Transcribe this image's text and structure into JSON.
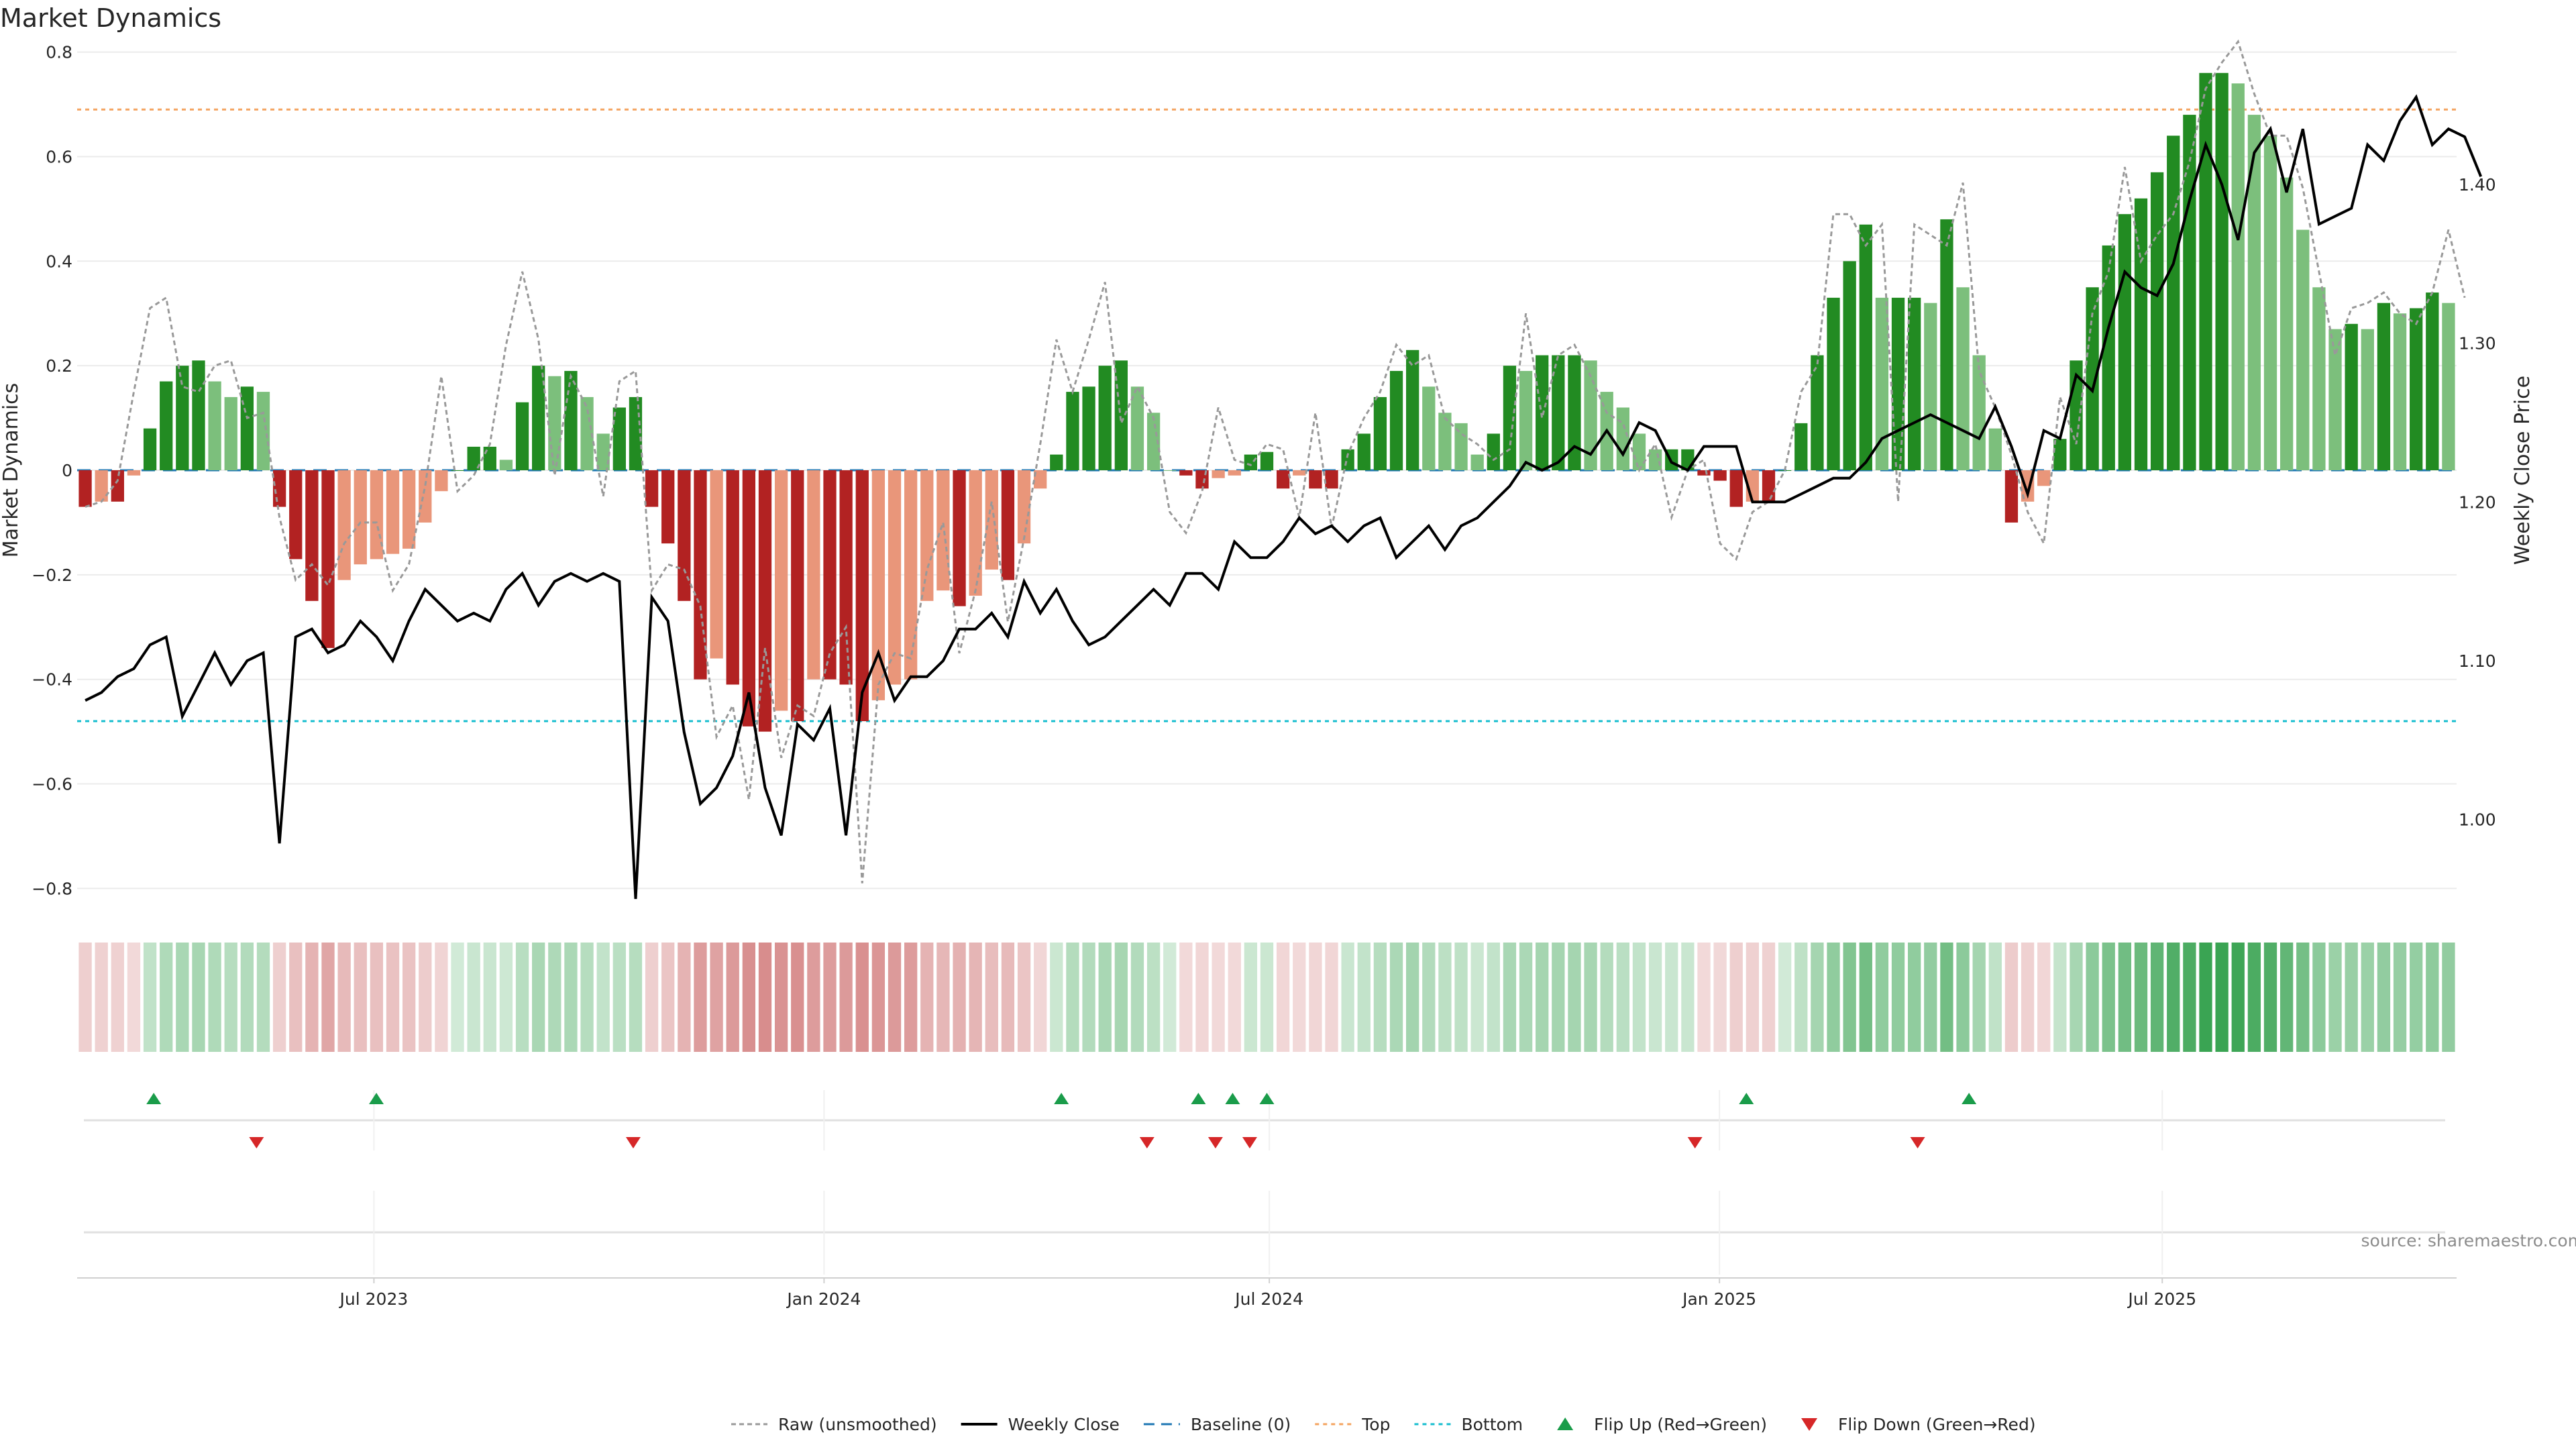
{
  "chart_data": {
    "type": "bar",
    "title": "Market Dynamics",
    "ylabel": "Market Dynamics",
    "y2label": "Weekly Close Price",
    "ylim": [
      -0.82,
      0.82
    ],
    "y2lim": [
      0.95,
      1.49
    ],
    "yticks": [
      0.8,
      0.6,
      0.4,
      0.2,
      0,
      -0.2,
      -0.4,
      -0.6,
      -0.8
    ],
    "ytick_labels": [
      "0.8",
      "0.6",
      "0.4",
      "0.2",
      "0",
      "−0.2",
      "−0.4",
      "−0.6",
      "−0.8"
    ],
    "y2ticks": [
      1.4,
      1.3,
      1.2,
      1.1,
      1.0
    ],
    "y2tick_labels": [
      "1.40",
      "1.30",
      "1.20",
      "1.10",
      "1.00"
    ],
    "x_start": "2023-03-05",
    "x_end": "2025-10-26",
    "xticks": [
      {
        "date": "2023-07-01",
        "label": "Jul 2023"
      },
      {
        "date": "2024-01-01",
        "label": "Jan 2024"
      },
      {
        "date": "2024-07-01",
        "label": "Jul 2024"
      },
      {
        "date": "2025-01-01",
        "label": "Jan 2025"
      },
      {
        "date": "2025-07-01",
        "label": "Jul 2025"
      }
    ],
    "top_line": 0.69,
    "bottom_line": -0.48,
    "baseline": 0,
    "momentum": [
      -0.07,
      -0.06,
      -0.06,
      -0.01,
      0.08,
      0.17,
      0.2,
      0.21,
      0.17,
      0.14,
      0.16,
      0.15,
      -0.07,
      -0.17,
      -0.25,
      -0.34,
      -0.21,
      -0.18,
      -0.17,
      -0.16,
      -0.15,
      -0.1,
      -0.04,
      0.0,
      0.045,
      0.045,
      0.02,
      0.13,
      0.2,
      0.18,
      0.19,
      0.14,
      0.07,
      0.12,
      0.14,
      -0.07,
      -0.14,
      -0.25,
      -0.4,
      -0.36,
      -0.41,
      -0.49,
      -0.5,
      -0.46,
      -0.48,
      -0.4,
      -0.4,
      -0.41,
      -0.48,
      -0.44,
      -0.41,
      -0.4,
      -0.25,
      -0.23,
      -0.26,
      -0.24,
      -0.19,
      -0.21,
      -0.14,
      -0.035,
      0.03,
      0.15,
      0.16,
      0.2,
      0.21,
      0.16,
      0.11,
      0.0,
      -0.01,
      -0.035,
      -0.015,
      -0.01,
      0.03,
      0.035,
      -0.035,
      -0.01,
      -0.035,
      -0.035,
      0.04,
      0.07,
      0.14,
      0.19,
      0.23,
      0.16,
      0.11,
      0.09,
      0.03,
      0.07,
      0.2,
      0.19,
      0.22,
      0.22,
      0.22,
      0.21,
      0.15,
      0.12,
      0.07,
      0.04,
      0.04,
      0.04,
      -0.01,
      -0.02,
      -0.07,
      -0.06,
      -0.06,
      0.0,
      0.09,
      0.22,
      0.33,
      0.4,
      0.47,
      0.33,
      0.33,
      0.33,
      0.32,
      0.48,
      0.35,
      0.22,
      0.08,
      -0.1,
      -0.06,
      -0.03,
      0.06,
      0.21,
      0.35,
      0.43,
      0.49,
      0.52,
      0.57,
      0.64,
      0.68,
      0.76,
      0.76,
      0.74,
      0.68,
      0.64,
      0.56,
      0.46,
      0.35,
      0.27,
      0.28,
      0.27,
      0.32,
      0.3,
      0.31,
      0.34,
      0.32
    ],
    "raw": [
      -0.07,
      -0.06,
      -0.02,
      0.15,
      0.31,
      0.33,
      0.16,
      0.15,
      0.2,
      0.21,
      0.1,
      0.11,
      -0.09,
      -0.21,
      -0.18,
      -0.22,
      -0.14,
      -0.1,
      -0.1,
      -0.23,
      -0.18,
      -0.03,
      0.18,
      -0.04,
      -0.01,
      0.05,
      0.24,
      0.38,
      0.25,
      -0.01,
      0.18,
      0.12,
      -0.05,
      0.17,
      0.19,
      -0.23,
      -0.18,
      -0.19,
      -0.26,
      -0.51,
      -0.45,
      -0.63,
      -0.34,
      -0.55,
      -0.45,
      -0.47,
      -0.35,
      -0.3,
      -0.79,
      -0.41,
      -0.35,
      -0.36,
      -0.19,
      -0.1,
      -0.35,
      -0.23,
      -0.06,
      -0.29,
      -0.13,
      0.05,
      0.25,
      0.15,
      0.25,
      0.36,
      0.09,
      0.16,
      0.1,
      -0.08,
      -0.12,
      -0.04,
      0.12,
      0.02,
      0.01,
      0.05,
      0.04,
      -0.09,
      0.11,
      -0.11,
      0.03,
      0.1,
      0.15,
      0.24,
      0.2,
      0.22,
      0.1,
      0.07,
      0.05,
      0.02,
      0.04,
      0.3,
      0.1,
      0.22,
      0.24,
      0.18,
      0.11,
      0.09,
      0.0,
      0.05,
      -0.09,
      0.0,
      0.02,
      -0.14,
      -0.17,
      -0.08,
      -0.06,
      0.0,
      0.15,
      0.2,
      0.49,
      0.49,
      0.43,
      0.47,
      -0.06,
      0.47,
      0.45,
      0.43,
      0.55,
      0.19,
      0.12,
      0.03,
      -0.08,
      -0.14,
      0.14,
      0.05,
      0.3,
      0.38,
      0.58,
      0.4,
      0.45,
      0.49,
      0.59,
      0.73,
      0.78,
      0.82,
      0.72,
      0.64,
      0.64,
      0.54,
      0.38,
      0.22,
      0.31,
      0.32,
      0.34,
      0.3,
      0.28,
      0.34,
      0.46,
      0.33
    ],
    "weekly_close": [
      1.075,
      1.08,
      1.09,
      1.095,
      1.11,
      1.115,
      1.065,
      1.085,
      1.105,
      1.085,
      1.1,
      1.105,
      0.985,
      1.115,
      1.12,
      1.105,
      1.11,
      1.125,
      1.115,
      1.1,
      1.125,
      1.145,
      1.135,
      1.125,
      1.13,
      1.125,
      1.145,
      1.155,
      1.135,
      1.15,
      1.155,
      1.15,
      1.155,
      1.15,
      0.95,
      1.14,
      1.125,
      1.055,
      1.01,
      1.02,
      1.04,
      1.08,
      1.02,
      0.99,
      1.06,
      1.05,
      1.07,
      0.99,
      1.08,
      1.105,
      1.075,
      1.09,
      1.09,
      1.1,
      1.12,
      1.12,
      1.13,
      1.115,
      1.15,
      1.13,
      1.145,
      1.125,
      1.11,
      1.115,
      1.125,
      1.135,
      1.145,
      1.135,
      1.155,
      1.155,
      1.145,
      1.175,
      1.165,
      1.165,
      1.175,
      1.19,
      1.18,
      1.185,
      1.175,
      1.185,
      1.19,
      1.165,
      1.175,
      1.185,
      1.17,
      1.185,
      1.19,
      1.2,
      1.21,
      1.225,
      1.22,
      1.225,
      1.235,
      1.23,
      1.245,
      1.23,
      1.25,
      1.245,
      1.225,
      1.22,
      1.235,
      1.235,
      1.235,
      1.2,
      1.2,
      1.2,
      1.205,
      1.21,
      1.215,
      1.215,
      1.225,
      1.24,
      1.245,
      1.25,
      1.255,
      1.25,
      1.245,
      1.24,
      1.26,
      1.235,
      1.205,
      1.245,
      1.24,
      1.28,
      1.27,
      1.31,
      1.345,
      1.335,
      1.33,
      1.35,
      1.39,
      1.425,
      1.4,
      1.365,
      1.42,
      1.435,
      1.395,
      1.435,
      1.375,
      1.38,
      1.385,
      1.425,
      1.415,
      1.44,
      1.455,
      1.425,
      1.435,
      1.43,
      1.405
    ],
    "flip_up_dates": [
      "2023-04-02",
      "2023-07-02",
      "2024-04-07",
      "2024-06-02",
      "2024-06-16",
      "2024-06-30",
      "2025-01-12",
      "2025-04-13"
    ],
    "flip_down_dates": [
      "2023-05-14",
      "2023-10-15",
      "2024-05-12",
      "2024-06-09",
      "2024-06-23",
      "2024-12-22",
      "2025-03-23"
    ],
    "legend": [
      {
        "key": "raw",
        "label": "Raw (unsmoothed)"
      },
      {
        "key": "weekly",
        "label": "Weekly Close"
      },
      {
        "key": "baseline",
        "label": "Baseline (0)"
      },
      {
        "key": "top",
        "label": "Top"
      },
      {
        "key": "bottom",
        "label": "Bottom"
      },
      {
        "key": "flipup",
        "label": "Flip Up (Red→Green)"
      },
      {
        "key": "flipdown",
        "label": "Flip Down (Green→Red)"
      }
    ],
    "legend_position": "bottom-center",
    "source": "source: sharemaestro.com",
    "colors": {
      "pos_strong": "#228b22",
      "pos_weak": "#7cbf7c",
      "neg_strong": "#b22222",
      "neg_weak": "#e9967a",
      "raw": "#999999",
      "weekly": "#000000",
      "baseline": "#1f77b4",
      "top": "#f4a460",
      "bottom": "#17becf",
      "flip_up": "#1a9c4a",
      "flip_down": "#d62728",
      "grid": "#ebebeb"
    }
  }
}
